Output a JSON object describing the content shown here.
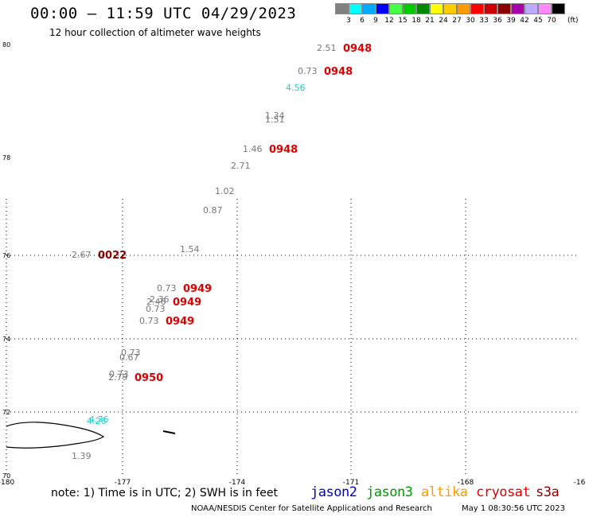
{
  "header": {
    "title": "00:00 – 11:59 UTC 04/29/2023",
    "subtitle": "12 hour collection of altimeter wave heights"
  },
  "legend": {
    "colors": [
      "#808080",
      "#00ffff",
      "#00aaff",
      "#0000ff",
      "#44ff44",
      "#00cc00",
      "#008800",
      "#ffff00",
      "#ffcc00",
      "#ff9900",
      "#ff0000",
      "#cc0000",
      "#880000",
      "#aa00aa",
      "#bbaaff",
      "#ff88ff",
      "#000000"
    ],
    "ticks": [
      "3",
      "6",
      "9",
      "12",
      "15",
      "18",
      "21",
      "24",
      "27",
      "30",
      "33",
      "36",
      "39",
      "42",
      "45",
      "70"
    ],
    "unit": "(ft)"
  },
  "axes": {
    "lat_labels": [
      "80",
      "78",
      "76",
      "74",
      "72",
      "70"
    ],
    "lon_labels": [
      "-180",
      "-177",
      "-174",
      "-171",
      "-168",
      "-16"
    ]
  },
  "observations": [
    {
      "value": "2.51",
      "color": "#777777",
      "time": "0948",
      "time_color": "#dd0000"
    },
    {
      "value": "0.73",
      "color": "#777777",
      "time": "0948",
      "time_color": "#dd0000"
    },
    {
      "value": "4.56",
      "color": "#22cccc"
    },
    {
      "value": "1.34",
      "color": "#777777"
    },
    {
      "value": "1.51",
      "color": "#777777"
    },
    {
      "value": "1.46",
      "color": "#777777",
      "time": "0948",
      "time_color": "#dd0000"
    },
    {
      "value": "2.71",
      "color": "#777777"
    },
    {
      "value": "1.02",
      "color": "#777777"
    },
    {
      "value": "0.87",
      "color": "#777777"
    },
    {
      "value": "1.54",
      "color": "#777777"
    },
    {
      "value": "2.67",
      "color": "#777777",
      "time": "0022",
      "time_color": "#880000"
    },
    {
      "value": "0.73",
      "color": "#777777",
      "time": "0949",
      "time_color": "#dd0000"
    },
    {
      "value": "2.36",
      "color": "#777777"
    },
    {
      "value": "2.46",
      "color": "#777777",
      "time": "0949",
      "time_color": "#dd0000"
    },
    {
      "value": "0.73",
      "color": "#777777"
    },
    {
      "value": "0.73",
      "color": "#777777",
      "time": "0949",
      "time_color": "#dd0000"
    },
    {
      "value": "0.73",
      "color": "#777777"
    },
    {
      "value": "0.67",
      "color": "#777777"
    },
    {
      "value": "0.73",
      "color": "#777777"
    },
    {
      "value": "2.79",
      "color": "#777777",
      "time": "0950",
      "time_color": "#dd0000"
    },
    {
      "value": "4.76",
      "color": "#22cccc"
    },
    {
      "value": "4.26",
      "color": "#22cccc"
    },
    {
      "value": "1.39",
      "color": "#777777"
    }
  ],
  "footer": {
    "note": "note: 1) Time is in UTC; 2) SWH is in feet",
    "satellites": [
      {
        "name": "jason2",
        "color": "#0000cc"
      },
      {
        "name": "jason3",
        "color": "#009900"
      },
      {
        "name": "altika",
        "color": "#ff9900"
      },
      {
        "name": "cryosat",
        "color": "#dd0000"
      },
      {
        "name": "s3a",
        "color": "#880000"
      }
    ],
    "credit": "NOAA/NESDIS Center for Satellite Applications and Research",
    "timestamp": "May  1 08:30:56 UTC 2023"
  }
}
